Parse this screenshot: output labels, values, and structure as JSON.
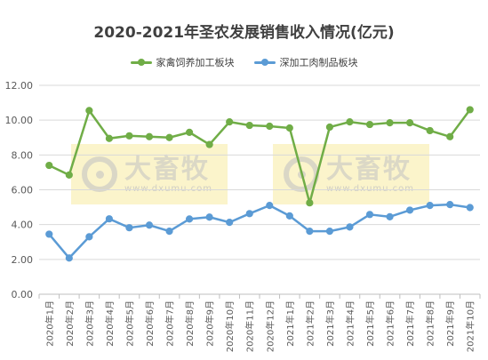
{
  "chart_data": {
    "type": "line",
    "title": "2020-2021年圣农发展销售收入情况(亿元)",
    "categories": [
      "2020年1月",
      "2020年2月",
      "2020年3月",
      "2020年4月",
      "2020年5月",
      "2020年6月",
      "2020年7月",
      "2020年8月",
      "2020年9月",
      "2020年10月",
      "2020年11月",
      "2020年12月",
      "2021年1月",
      "2021年2月",
      "2021年3月",
      "2021年4月",
      "2021年5月",
      "2021年6月",
      "2021年7月",
      "2021年8月",
      "2021年9月",
      "2021年10月"
    ],
    "series": [
      {
        "name": "家禽饲养加工板块",
        "color": "#70ad47",
        "values": [
          7.4,
          6.85,
          10.55,
          8.95,
          9.1,
          9.05,
          9.0,
          9.3,
          8.6,
          9.9,
          9.7,
          9.65,
          9.55,
          5.25,
          9.6,
          9.9,
          9.75,
          9.85,
          9.85,
          9.4,
          9.05,
          10.6
        ]
      },
      {
        "name": "深加工肉制品板块",
        "color": "#5b9bd5",
        "values": [
          3.45,
          2.08,
          3.3,
          4.33,
          3.82,
          3.97,
          3.62,
          4.32,
          4.43,
          4.13,
          4.63,
          5.1,
          4.5,
          3.62,
          3.62,
          3.86,
          4.58,
          4.45,
          4.83,
          5.1,
          5.15,
          4.98
        ]
      }
    ],
    "ylim": [
      0,
      12
    ],
    "yticks": [
      0,
      2,
      4,
      6,
      8,
      10,
      12
    ],
    "ytick_labels": [
      "0.00",
      "2.00",
      "4.00",
      "6.00",
      "8.00",
      "10.00",
      "12.00"
    ],
    "grid": true,
    "legend_position": "top"
  },
  "watermark": {
    "brand": "大畜牧",
    "url": "www.dxumu.com"
  }
}
